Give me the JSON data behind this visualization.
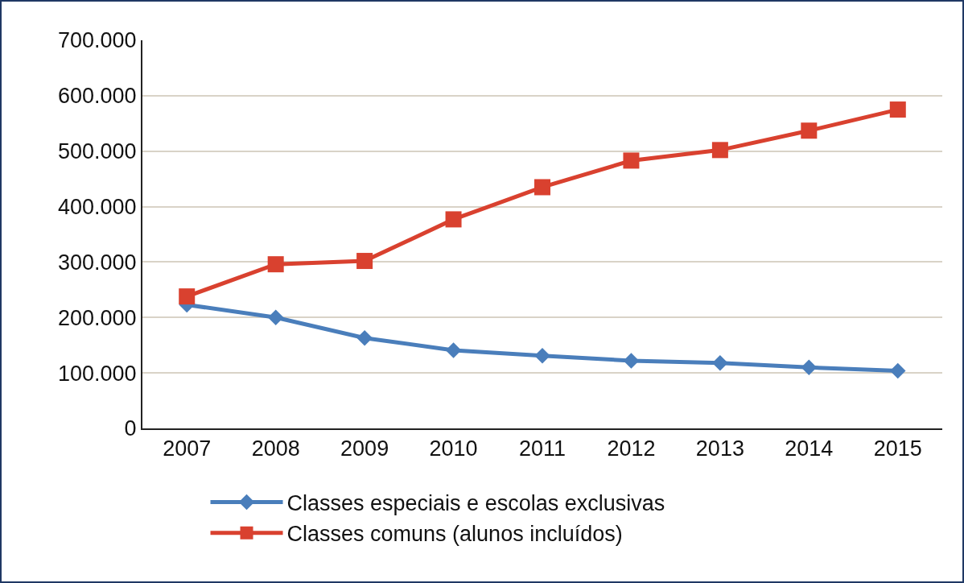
{
  "chart_data": {
    "type": "line",
    "categories": [
      "2007",
      "2008",
      "2009",
      "2010",
      "2011",
      "2012",
      "2013",
      "2014",
      "2015"
    ],
    "series": [
      {
        "name": "Classes especiais e escolas exclusivas",
        "color": "#4a7ebb",
        "marker": "diamond",
        "values": [
          223000,
          200000,
          163000,
          141000,
          131000,
          122000,
          118000,
          110000,
          104000
        ]
      },
      {
        "name": "Classes comuns (alunos incluídos)",
        "color": "#d9412f",
        "marker": "square",
        "values": [
          238000,
          296000,
          302000,
          377000,
          435000,
          483000,
          502000,
          537000,
          575000
        ]
      }
    ],
    "ylim": [
      0,
      700000
    ],
    "yticks": [
      0,
      {
        "value": 100000,
        "label": "100.000"
      },
      {
        "value": 200000,
        "label": "200.000"
      },
      {
        "value": 300000,
        "label": "300.000"
      },
      {
        "value": 400000,
        "label": "400.000"
      },
      {
        "value": 500000,
        "label": "500.000"
      },
      {
        "value": 600000,
        "label": "600.000"
      },
      {
        "value": 700000,
        "label": "700.000"
      }
    ],
    "grid": "y",
    "legend": "bottom",
    "line_style": "solid"
  }
}
